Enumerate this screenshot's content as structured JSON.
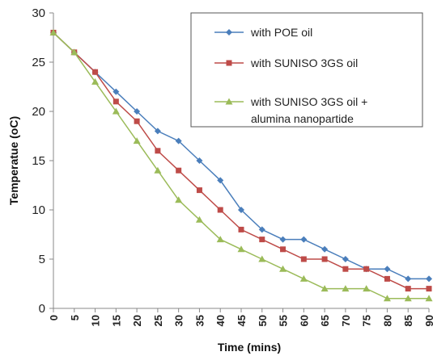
{
  "chart_data": {
    "type": "line",
    "xlabel": "Time (mins)",
    "ylabel": "Temperatue (oC)",
    "xlim": [
      0,
      90
    ],
    "ylim": [
      0,
      30
    ],
    "x_ticks": [
      "0",
      "5",
      "10",
      "15",
      "20",
      "25",
      "30",
      "35",
      "40",
      "45",
      "50",
      "55",
      "60",
      "65",
      "70",
      "75",
      "80",
      "85",
      "90"
    ],
    "y_ticks": [
      "0",
      "5",
      "10",
      "15",
      "20",
      "25",
      "30"
    ],
    "grid": false,
    "legend_position": "top-right",
    "x": [
      0,
      5,
      10,
      15,
      20,
      25,
      30,
      35,
      40,
      45,
      50,
      55,
      60,
      65,
      70,
      75,
      80,
      85,
      90
    ],
    "series": [
      {
        "name": "with POE oil",
        "color": "#4a7ebb",
        "marker": "diamond",
        "values": [
          28,
          26,
          24,
          22,
          20,
          18,
          17,
          15,
          13,
          10,
          8,
          7,
          7,
          6,
          5,
          4,
          4,
          3,
          3
        ]
      },
      {
        "name": "with SUNISO 3GS oil",
        "color": "#be4b48",
        "marker": "square",
        "values": [
          28,
          26,
          24,
          21,
          19,
          16,
          14,
          12,
          10,
          8,
          7,
          6,
          5,
          5,
          4,
          4,
          3,
          2,
          2
        ]
      },
      {
        "name": "with SUNISO 3GS oil + alumina nanopartide",
        "legend_lines": [
          "with SUNISO 3GS oil +",
          "alumina nanopartide"
        ],
        "color": "#9bbb59",
        "marker": "triangle",
        "values": [
          28,
          26,
          23,
          20,
          17,
          14,
          11,
          9,
          7,
          6,
          5,
          4,
          3,
          2,
          2,
          2,
          1,
          1,
          1
        ]
      }
    ]
  }
}
